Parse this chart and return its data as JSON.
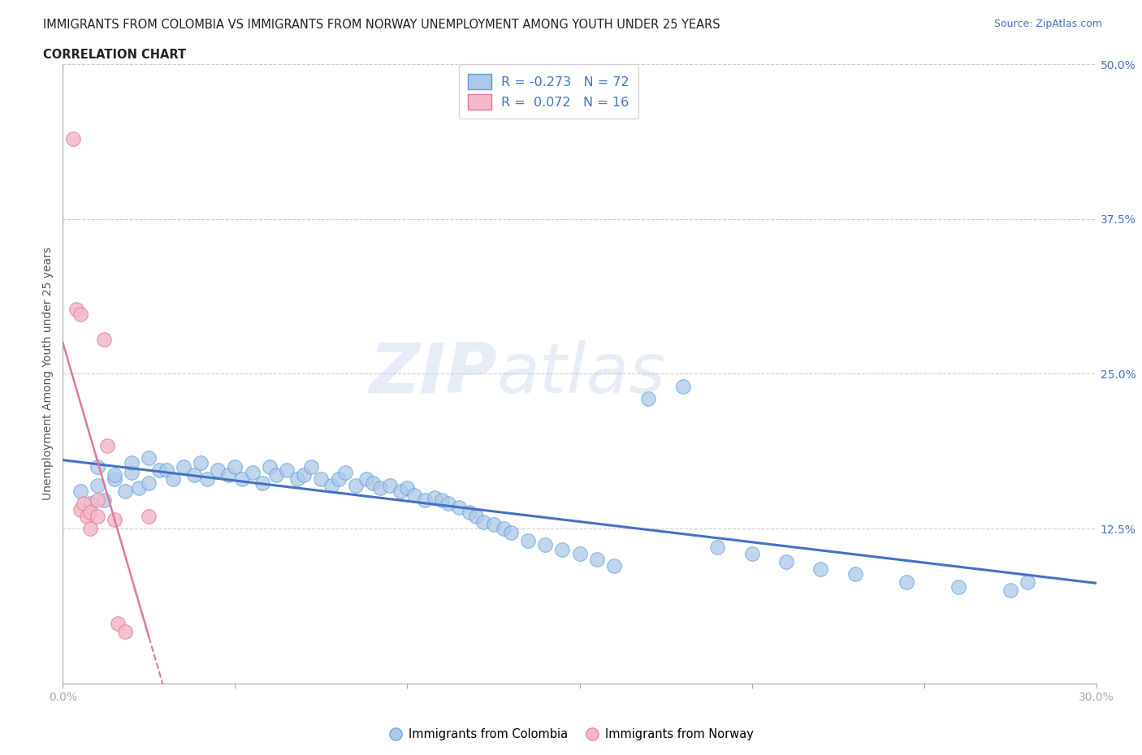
{
  "title_line1": "IMMIGRANTS FROM COLOMBIA VS IMMIGRANTS FROM NORWAY UNEMPLOYMENT AMONG YOUTH UNDER 25 YEARS",
  "title_line2": "CORRELATION CHART",
  "source_text": "Source: ZipAtlas.com",
  "ylabel": "Unemployment Among Youth under 25 years",
  "xlim": [
    0.0,
    0.3
  ],
  "ylim": [
    0.0,
    0.5
  ],
  "yticks": [
    0.0,
    0.125,
    0.25,
    0.375,
    0.5
  ],
  "ytick_labels": [
    "",
    "12.5%",
    "25.0%",
    "37.5%",
    "50.0%"
  ],
  "xticks": [
    0.0,
    0.05,
    0.1,
    0.15,
    0.2,
    0.25,
    0.3
  ],
  "xtick_labels": [
    "0.0%",
    "",
    "",
    "",
    "",
    "",
    "30.0%"
  ],
  "colombia_color": "#adc8e8",
  "norway_color": "#f5b8c8",
  "colombia_edge_color": "#5b9bd5",
  "norway_edge_color": "#e07898",
  "colombia_line_color": "#4472c4",
  "norway_line_color": "#e07898",
  "colombia_R": -0.273,
  "colombia_N": 72,
  "norway_R": 0.072,
  "norway_N": 16,
  "legend_label_colombia": "Immigrants from Colombia",
  "legend_label_norway": "Immigrants from Norway",
  "colombia_scatter_x": [
    0.005,
    0.008,
    0.01,
    0.012,
    0.015,
    0.018,
    0.02,
    0.022,
    0.025,
    0.028,
    0.01,
    0.015,
    0.02,
    0.025,
    0.03,
    0.032,
    0.035,
    0.038,
    0.04,
    0.042,
    0.045,
    0.048,
    0.05,
    0.052,
    0.055,
    0.058,
    0.06,
    0.062,
    0.065,
    0.068,
    0.07,
    0.072,
    0.075,
    0.078,
    0.08,
    0.082,
    0.085,
    0.088,
    0.09,
    0.092,
    0.095,
    0.098,
    0.1,
    0.102,
    0.105,
    0.108,
    0.11,
    0.112,
    0.115,
    0.118,
    0.12,
    0.122,
    0.125,
    0.128,
    0.13,
    0.135,
    0.14,
    0.145,
    0.15,
    0.155,
    0.16,
    0.17,
    0.18,
    0.19,
    0.2,
    0.21,
    0.22,
    0.23,
    0.245,
    0.26,
    0.275,
    0.28
  ],
  "colombia_scatter_y": [
    0.155,
    0.145,
    0.16,
    0.148,
    0.165,
    0.155,
    0.17,
    0.158,
    0.162,
    0.172,
    0.175,
    0.168,
    0.178,
    0.182,
    0.172,
    0.165,
    0.175,
    0.168,
    0.178,
    0.165,
    0.172,
    0.168,
    0.175,
    0.165,
    0.17,
    0.162,
    0.175,
    0.168,
    0.172,
    0.165,
    0.168,
    0.175,
    0.165,
    0.16,
    0.165,
    0.17,
    0.16,
    0.165,
    0.162,
    0.158,
    0.16,
    0.155,
    0.158,
    0.152,
    0.148,
    0.15,
    0.148,
    0.145,
    0.142,
    0.138,
    0.135,
    0.13,
    0.128,
    0.125,
    0.122,
    0.115,
    0.112,
    0.108,
    0.105,
    0.1,
    0.095,
    0.23,
    0.24,
    0.11,
    0.105,
    0.098,
    0.092,
    0.088,
    0.082,
    0.078,
    0.075,
    0.082
  ],
  "norway_scatter_x": [
    0.003,
    0.004,
    0.005,
    0.005,
    0.006,
    0.007,
    0.008,
    0.008,
    0.01,
    0.01,
    0.012,
    0.013,
    0.015,
    0.016,
    0.018,
    0.025
  ],
  "norway_scatter_y": [
    0.44,
    0.302,
    0.298,
    0.14,
    0.145,
    0.135,
    0.138,
    0.125,
    0.148,
    0.135,
    0.278,
    0.192,
    0.132,
    0.048,
    0.042,
    0.135
  ]
}
